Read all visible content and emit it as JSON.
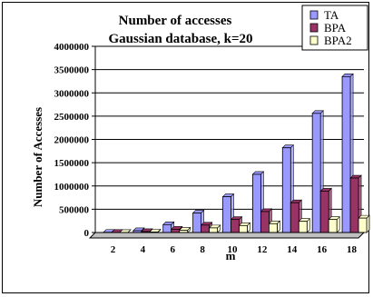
{
  "chart_data": {
    "type": "bar",
    "title": "Number of accesses",
    "subtitle": "Gaussian database, k=20",
    "xlabel": "m",
    "ylabel": "Number of Accesses",
    "categories": [
      "2",
      "4",
      "6",
      "8",
      "10",
      "12",
      "14",
      "16",
      "18"
    ],
    "ylim": [
      0,
      4000000
    ],
    "yticks": [
      "0",
      "500000",
      "1000000",
      "1500000",
      "2000000",
      "2500000",
      "3000000",
      "3500000",
      "4000000"
    ],
    "grid": true,
    "legend_position": "top-right",
    "series": [
      {
        "name": "TA",
        "color": "#9999ff",
        "values": [
          5000,
          40000,
          170000,
          420000,
          770000,
          1250000,
          1820000,
          2560000,
          3350000
        ]
      },
      {
        "name": "BPA",
        "color": "#993366",
        "values": [
          3000,
          20000,
          70000,
          160000,
          280000,
          450000,
          640000,
          890000,
          1170000
        ]
      },
      {
        "name": "BPA2",
        "color": "#ffffcc",
        "values": [
          2000,
          10000,
          50000,
          100000,
          150000,
          190000,
          240000,
          280000,
          310000
        ]
      }
    ]
  }
}
